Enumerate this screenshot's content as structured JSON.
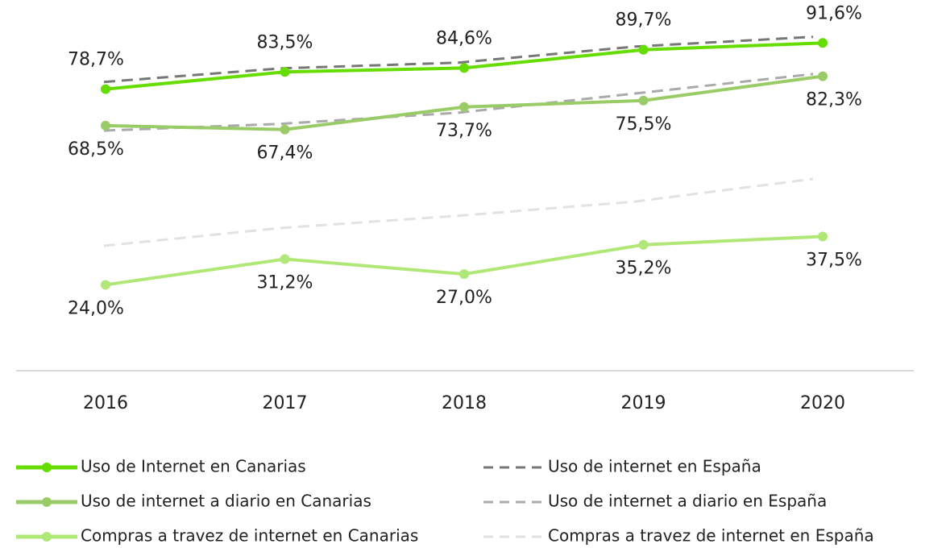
{
  "chart_data": {
    "type": "line",
    "categories": [
      "2016",
      "2017",
      "2018",
      "2019",
      "2020"
    ],
    "ylim": [
      0,
      100
    ],
    "series": [
      {
        "name": "Uso de Internet en Canarias",
        "color": "#66dd00",
        "dash": false,
        "marker": true,
        "values": [
          78.7,
          83.5,
          84.6,
          89.7,
          91.6
        ],
        "value_labels": [
          "78,7%",
          "83,5%",
          "84,6%",
          "89,7%",
          "91,6%"
        ],
        "label_side": "above"
      },
      {
        "name": "Uso de internet a diario en Canarias",
        "color": "#99cc66",
        "dash": false,
        "marker": true,
        "values": [
          68.5,
          67.4,
          73.7,
          75.5,
          82.3
        ],
        "value_labels": [
          "68,5%",
          "67,4%",
          "73,7%",
          "75,5%",
          "82,3%"
        ],
        "label_side": "below"
      },
      {
        "name": "Compras a travez de internet en Canarias",
        "color": "#b0e878",
        "dash": false,
        "marker": true,
        "values": [
          24.0,
          31.2,
          27.0,
          35.2,
          37.5
        ],
        "value_labels": [
          "24,0%",
          "31,2%",
          "27,0%",
          "35,2%",
          "37,5%"
        ],
        "label_side": "below"
      },
      {
        "name": "Uso de internet en España",
        "color": "#777777",
        "dash": true,
        "marker": false,
        "values": [
          80.7,
          84.5,
          86.1,
          90.6,
          93.3
        ]
      },
      {
        "name": "Uso de internet a diario en España",
        "color": "#aaaaaa",
        "dash": true,
        "marker": false,
        "values": [
          67.1,
          69.0,
          72.1,
          77.5,
          82.9
        ]
      },
      {
        "name": "Compras a travez de internet en España",
        "color": "#e2e2e2",
        "dash": true,
        "marker": false,
        "values": [
          34.9,
          39.9,
          43.3,
          47.3,
          53.6
        ]
      }
    ]
  }
}
